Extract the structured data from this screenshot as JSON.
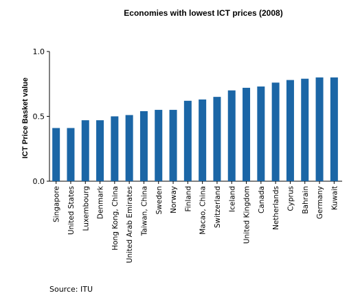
{
  "chart_data": {
    "type": "bar",
    "title": "Economies with lowest ICT prices (2008)",
    "xlabel": "",
    "ylabel": "ICT Price Basket value",
    "ylim": [
      0,
      1.0
    ],
    "yticks": [
      "0.0",
      "0.5",
      "1.0"
    ],
    "grid": false,
    "bar_color": "#1b66a6",
    "categories": [
      "Singapore",
      "United States",
      "Luxembourg",
      "Denmark",
      "Hong Kong, China",
      "United Arab Emirates",
      "Taiwan, China",
      "Sweden",
      "Norway",
      "Finland",
      "Macao, China",
      "Switzerland",
      "Iceland",
      "United Kingdom",
      "Canada",
      "Netherlands",
      "Cyprus",
      "Bahrain",
      "Germany",
      "Kuwait"
    ],
    "values": [
      0.41,
      0.41,
      0.47,
      0.47,
      0.5,
      0.51,
      0.54,
      0.55,
      0.55,
      0.62,
      0.63,
      0.65,
      0.7,
      0.72,
      0.73,
      0.76,
      0.78,
      0.79,
      0.8,
      0.8
    ]
  },
  "source": "Source: ITU"
}
